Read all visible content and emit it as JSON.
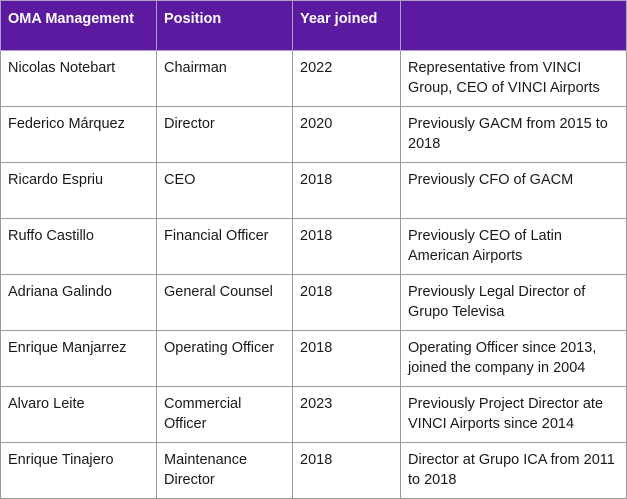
{
  "table": {
    "headers": [
      "OMA Management",
      "Position",
      "Year joined",
      ""
    ],
    "rows": [
      {
        "name": "Nicolas Notebart",
        "position": "Chairman",
        "year": "2022",
        "note": "Representative from VINCI Group, CEO of VINCI Airports"
      },
      {
        "name": "Federico Márquez",
        "position": "Director",
        "year": "2020",
        "note": "Previously GACM from 2015 to 2018"
      },
      {
        "name": "Ricardo Espriu",
        "position": "CEO",
        "year": "2018",
        "note": "Previously CFO of GACM"
      },
      {
        "name": "Ruffo Castillo",
        "position": "Financial Officer",
        "year": "2018",
        "note": "Previously CEO of Latin American Airports"
      },
      {
        "name": "Adriana Galindo",
        "position": "General Counsel",
        "year": "2018",
        "note": "Previously Legal Director of Grupo Televisa"
      },
      {
        "name": "Enrique Manjarrez",
        "position": "Operating Officer",
        "year": "2018",
        "note": "Operating Officer since 2013, joined the company in 2004"
      },
      {
        "name": "Alvaro Leite",
        "position": "Commercial Officer",
        "year": "2023",
        "note": "Previously Project Director ate VINCI Airports since 2014"
      },
      {
        "name": "Enrique Tinajero",
        "position": "Maintenance Director",
        "year": "2018",
        "note": "Director at Grupo ICA from 2011 to 2018"
      }
    ]
  },
  "colors": {
    "header_bg": "#5c1aa0",
    "header_text": "#ffffff",
    "border": "#9a9a9a"
  }
}
